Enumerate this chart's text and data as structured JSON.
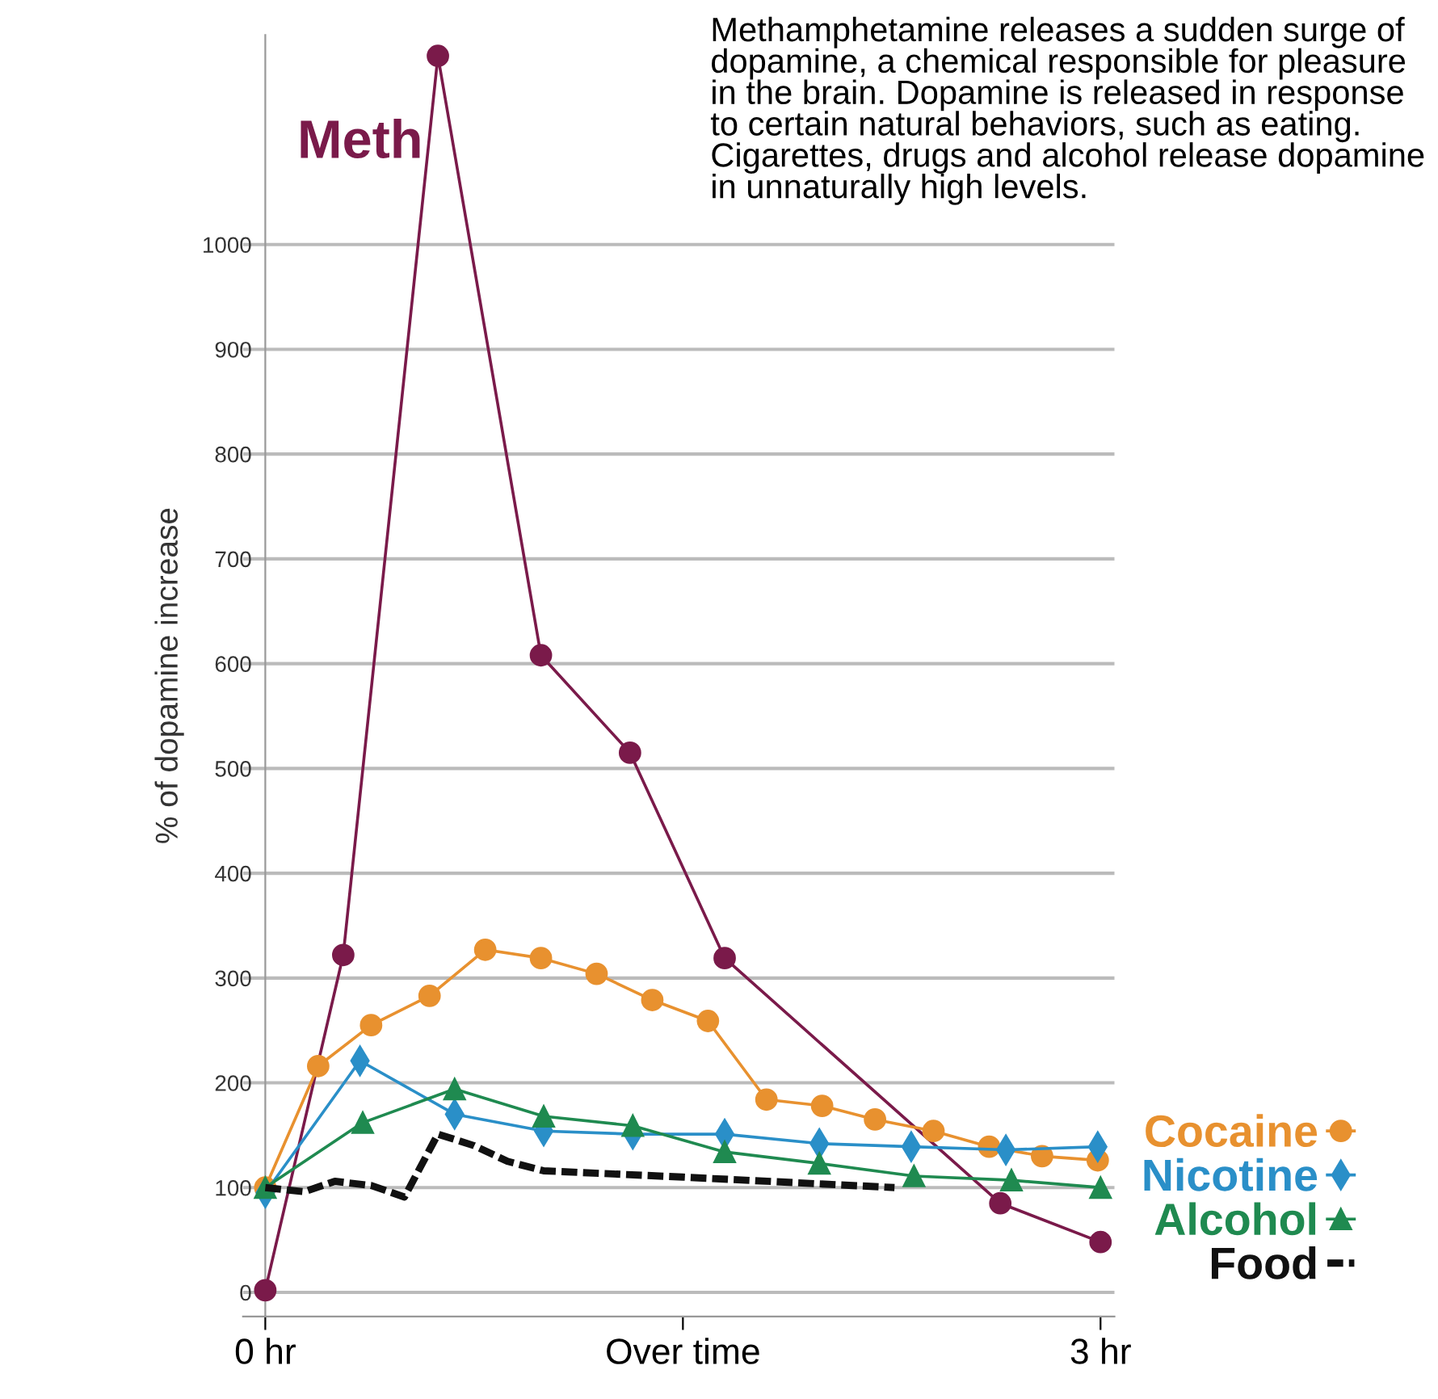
{
  "chart_data": {
    "type": "line",
    "ylabel": "% of dopamine increase",
    "xlim": [
      -0.08,
      3.05
    ],
    "xticks": [
      {
        "value": 0,
        "label": "0 hr"
      },
      {
        "value": 1.5,
        "label": "Over time"
      },
      {
        "value": 3,
        "label": "3 hr"
      }
    ],
    "ylim": [
      -23,
      1200
    ],
    "yticks": [
      0,
      100,
      200,
      300,
      400,
      500,
      600,
      700,
      800,
      900,
      1000
    ],
    "grid": "y",
    "legend": "right",
    "line_style": "solid",
    "annotations": [
      "Methamphetamine releases a sudden surge of dopamine, a chemical responsible for pleasure in the brain. Dopamine is released in response to certain natural behaviors, such as eating. Cigarettes, drugs and alcohol release dopamine in unnaturally high levels."
    ],
    "series": [
      {
        "name": "Meth",
        "color": "#7a1a4a",
        "marker": "circle",
        "x": [
          0,
          0.28,
          0.62,
          0.99,
          1.31,
          1.65,
          2.64,
          3.0
        ],
        "values": [
          2,
          322,
          1180,
          608,
          515,
          319,
          85,
          48
        ]
      },
      {
        "name": "Cocaine",
        "color": "#e8912f",
        "marker": "circle",
        "x": [
          0,
          0.19,
          0.38,
          0.59,
          0.79,
          0.99,
          1.19,
          1.39,
          1.59,
          1.8,
          2.0,
          2.19,
          2.4,
          2.6,
          2.79,
          2.99
        ],
        "values": [
          100,
          216,
          255,
          283,
          327,
          319,
          304,
          279,
          259,
          184,
          178,
          165,
          154,
          139,
          130,
          126
        ]
      },
      {
        "name": "Nicotine",
        "color": "#2a8fc8",
        "marker": "diamond",
        "x": [
          0,
          0.34,
          0.68,
          1.0,
          1.32,
          1.65,
          1.99,
          2.32,
          2.66,
          2.99
        ],
        "values": [
          95,
          221,
          170,
          154,
          151,
          151,
          142,
          139,
          136,
          139
        ]
      },
      {
        "name": "Alcohol",
        "color": "#1f8a50",
        "marker": "triangle",
        "x": [
          0,
          0.35,
          0.68,
          1.0,
          1.32,
          1.65,
          1.99,
          2.33,
          2.68,
          3.0
        ],
        "values": [
          100,
          162,
          194,
          168,
          159,
          134,
          123,
          111,
          107,
          100
        ]
      },
      {
        "name": "Food",
        "color": "#111111",
        "marker": "none",
        "line_style": "dashed",
        "x": [
          0,
          0.14,
          0.25,
          0.38,
          0.5,
          0.62,
          0.75,
          0.87,
          1.0,
          1.5,
          2.26
        ],
        "values": [
          100,
          96,
          106,
          102,
          91,
          151,
          140,
          125,
          116,
          110,
          100
        ]
      }
    ]
  }
}
